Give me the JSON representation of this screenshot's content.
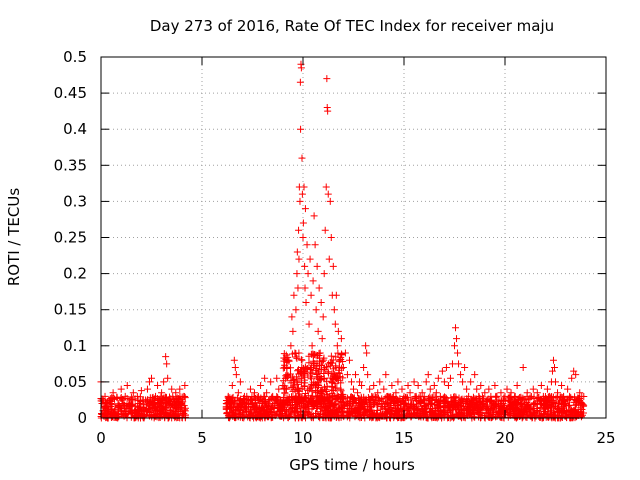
{
  "chart_data": {
    "type": "scatter",
    "title": "Day 273 of 2016, Rate Of TEC Index for receiver maju",
    "xlabel": "GPS time / hours",
    "ylabel": "ROTI / TECUs",
    "xlim": [
      0,
      25
    ],
    "ylim": [
      0,
      0.5
    ],
    "xticks": [
      0,
      5,
      10,
      15,
      20,
      25
    ],
    "xtick_labels": [
      "0",
      "5",
      "10",
      "15",
      "20",
      "25"
    ],
    "yticks": [
      0,
      0.05,
      0.1,
      0.15,
      0.2,
      0.25,
      0.3,
      0.35,
      0.4,
      0.45,
      0.5
    ],
    "ytick_labels": [
      "0",
      "0.05",
      "0.1",
      "0.15",
      "0.2",
      "0.25",
      "0.3",
      "0.35",
      "0.4",
      "0.45",
      "0.5"
    ],
    "grid": true,
    "marker": "+",
    "color": "#ff0000",
    "series": [
      {
        "name": "ROTI",
        "points": [
          [
            0.0,
            0.05
          ],
          [
            0.05,
            0.02
          ],
          [
            0.1,
            0.01
          ],
          [
            0.2,
            0.03
          ],
          [
            0.3,
            0.015
          ],
          [
            0.4,
            0.025
          ],
          [
            0.5,
            0.02
          ],
          [
            0.6,
            0.035
          ],
          [
            0.7,
            0.012
          ],
          [
            0.8,
            0.028
          ],
          [
            0.9,
            0.018
          ],
          [
            1.0,
            0.04
          ],
          [
            1.1,
            0.02
          ],
          [
            1.2,
            0.03
          ],
          [
            1.3,
            0.045
          ],
          [
            1.4,
            0.015
          ],
          [
            1.5,
            0.025
          ],
          [
            1.6,
            0.035
          ],
          [
            1.7,
            0.01
          ],
          [
            1.8,
            0.03
          ],
          [
            1.9,
            0.02
          ],
          [
            2.0,
            0.038
          ],
          [
            2.1,
            0.015
          ],
          [
            2.2,
            0.025
          ],
          [
            2.3,
            0.04
          ],
          [
            2.4,
            0.05
          ],
          [
            2.5,
            0.055
          ],
          [
            2.6,
            0.02
          ],
          [
            2.7,
            0.03
          ],
          [
            2.8,
            0.045
          ],
          [
            2.9,
            0.015
          ],
          [
            3.0,
            0.035
          ],
          [
            3.1,
            0.05
          ],
          [
            3.2,
            0.085
          ],
          [
            3.25,
            0.075
          ],
          [
            3.3,
            0.055
          ],
          [
            3.4,
            0.02
          ],
          [
            3.5,
            0.04
          ],
          [
            3.6,
            0.025
          ],
          [
            3.7,
            0.035
          ],
          [
            3.8,
            0.015
          ],
          [
            3.9,
            0.04
          ],
          [
            4.0,
            0.02
          ],
          [
            4.1,
            0.03
          ],
          [
            4.15,
            0.045
          ],
          [
            6.2,
            0.015
          ],
          [
            6.3,
            0.03
          ],
          [
            6.4,
            0.02
          ],
          [
            6.5,
            0.045
          ],
          [
            6.6,
            0.08
          ],
          [
            6.65,
            0.07
          ],
          [
            6.7,
            0.06
          ],
          [
            6.8,
            0.035
          ],
          [
            6.9,
            0.05
          ],
          [
            7.0,
            0.02
          ],
          [
            7.1,
            0.03
          ],
          [
            7.2,
            0.015
          ],
          [
            7.3,
            0.025
          ],
          [
            7.4,
            0.04
          ],
          [
            7.5,
            0.02
          ],
          [
            7.6,
            0.035
          ],
          [
            7.7,
            0.015
          ],
          [
            7.8,
            0.03
          ],
          [
            7.9,
            0.045
          ],
          [
            8.0,
            0.02
          ],
          [
            8.1,
            0.055
          ],
          [
            8.2,
            0.035
          ],
          [
            8.3,
            0.025
          ],
          [
            8.4,
            0.05
          ],
          [
            8.5,
            0.03
          ],
          [
            8.6,
            0.02
          ],
          [
            8.7,
            0.055
          ],
          [
            8.8,
            0.04
          ],
          [
            8.9,
            0.025
          ],
          [
            9.0,
            0.045
          ],
          [
            9.1,
            0.035
          ],
          [
            9.2,
            0.06
          ],
          [
            9.3,
            0.08
          ],
          [
            9.4,
            0.1
          ],
          [
            9.45,
            0.14
          ],
          [
            9.5,
            0.12
          ],
          [
            9.55,
            0.17
          ],
          [
            9.6,
            0.09
          ],
          [
            9.65,
            0.15
          ],
          [
            9.7,
            0.2
          ],
          [
            9.72,
            0.23
          ],
          [
            9.75,
            0.18
          ],
          [
            9.78,
            0.26
          ],
          [
            9.8,
            0.22
          ],
          [
            9.82,
            0.32
          ],
          [
            9.85,
            0.3
          ],
          [
            9.87,
            0.465
          ],
          [
            9.88,
            0.4
          ],
          [
            9.9,
            0.49
          ],
          [
            9.92,
            0.485
          ],
          [
            9.95,
            0.36
          ],
          [
            9.97,
            0.31
          ],
          [
            10.0,
            0.25
          ],
          [
            10.02,
            0.27
          ],
          [
            10.05,
            0.32
          ],
          [
            10.08,
            0.21
          ],
          [
            10.1,
            0.18
          ],
          [
            10.12,
            0.29
          ],
          [
            10.15,
            0.16
          ],
          [
            10.2,
            0.24
          ],
          [
            10.25,
            0.2
          ],
          [
            10.3,
            0.13
          ],
          [
            10.35,
            0.22
          ],
          [
            10.4,
            0.17
          ],
          [
            10.45,
            0.1
          ],
          [
            10.5,
            0.19
          ],
          [
            10.55,
            0.28
          ],
          [
            10.6,
            0.24
          ],
          [
            10.65,
            0.15
          ],
          [
            10.7,
            0.21
          ],
          [
            10.75,
            0.12
          ],
          [
            10.8,
            0.18
          ],
          [
            10.85,
            0.09
          ],
          [
            10.9,
            0.16
          ],
          [
            10.95,
            0.11
          ],
          [
            11.0,
            0.14
          ],
          [
            11.05,
            0.2
          ],
          [
            11.1,
            0.26
          ],
          [
            11.15,
            0.32
          ],
          [
            11.18,
            0.47
          ],
          [
            11.2,
            0.43
          ],
          [
            11.22,
            0.425
          ],
          [
            11.25,
            0.31
          ],
          [
            11.3,
            0.22
          ],
          [
            11.35,
            0.3
          ],
          [
            11.4,
            0.25
          ],
          [
            11.45,
            0.17
          ],
          [
            11.5,
            0.21
          ],
          [
            11.55,
            0.15
          ],
          [
            11.6,
            0.13
          ],
          [
            11.65,
            0.17
          ],
          [
            11.7,
            0.1
          ],
          [
            11.75,
            0.12
          ],
          [
            11.8,
            0.08
          ],
          [
            11.9,
            0.11
          ],
          [
            12.0,
            0.07
          ],
          [
            12.1,
            0.09
          ],
          [
            12.2,
            0.06
          ],
          [
            12.3,
            0.08
          ],
          [
            12.4,
            0.05
          ],
          [
            12.5,
            0.04
          ],
          [
            12.6,
            0.06
          ],
          [
            12.7,
            0.035
          ],
          [
            12.8,
            0.05
          ],
          [
            12.9,
            0.045
          ],
          [
            13.0,
            0.07
          ],
          [
            13.1,
            0.1
          ],
          [
            13.15,
            0.09
          ],
          [
            13.2,
            0.06
          ],
          [
            13.3,
            0.04
          ],
          [
            13.4,
            0.03
          ],
          [
            13.5,
            0.045
          ],
          [
            13.6,
            0.025
          ],
          [
            13.7,
            0.035
          ],
          [
            13.8,
            0.05
          ],
          [
            13.9,
            0.02
          ],
          [
            14.0,
            0.04
          ],
          [
            14.1,
            0.06
          ],
          [
            14.2,
            0.03
          ],
          [
            14.3,
            0.025
          ],
          [
            14.4,
            0.045
          ],
          [
            14.5,
            0.02
          ],
          [
            14.6,
            0.035
          ],
          [
            14.7,
            0.05
          ],
          [
            14.8,
            0.025
          ],
          [
            14.9,
            0.04
          ],
          [
            15.0,
            0.03
          ],
          [
            15.1,
            0.02
          ],
          [
            15.2,
            0.045
          ],
          [
            15.3,
            0.035
          ],
          [
            15.4,
            0.025
          ],
          [
            15.5,
            0.05
          ],
          [
            15.6,
            0.03
          ],
          [
            15.7,
            0.045
          ],
          [
            15.8,
            0.02
          ],
          [
            15.9,
            0.035
          ],
          [
            16.0,
            0.03
          ],
          [
            16.1,
            0.05
          ],
          [
            16.2,
            0.06
          ],
          [
            16.3,
            0.04
          ],
          [
            16.4,
            0.025
          ],
          [
            16.5,
            0.045
          ],
          [
            16.6,
            0.035
          ],
          [
            16.7,
            0.055
          ],
          [
            16.8,
            0.03
          ],
          [
            16.9,
            0.065
          ],
          [
            17.0,
            0.05
          ],
          [
            17.1,
            0.07
          ],
          [
            17.2,
            0.045
          ],
          [
            17.3,
            0.055
          ],
          [
            17.4,
            0.075
          ],
          [
            17.5,
            0.1
          ],
          [
            17.55,
            0.125
          ],
          [
            17.6,
            0.11
          ],
          [
            17.65,
            0.09
          ],
          [
            17.7,
            0.075
          ],
          [
            17.8,
            0.06
          ],
          [
            17.9,
            0.05
          ],
          [
            18.0,
            0.07
          ],
          [
            18.1,
            0.04
          ],
          [
            18.2,
            0.03
          ],
          [
            18.3,
            0.05
          ],
          [
            18.4,
            0.025
          ],
          [
            18.5,
            0.06
          ],
          [
            18.6,
            0.04
          ],
          [
            18.7,
            0.03
          ],
          [
            18.8,
            0.045
          ],
          [
            18.9,
            0.02
          ],
          [
            19.0,
            0.035
          ],
          [
            19.1,
            0.025
          ],
          [
            19.2,
            0.04
          ],
          [
            19.3,
            0.03
          ],
          [
            19.4,
            0.02
          ],
          [
            19.5,
            0.045
          ],
          [
            19.6,
            0.03
          ],
          [
            19.7,
            0.025
          ],
          [
            19.8,
            0.035
          ],
          [
            19.9,
            0.02
          ],
          [
            20.0,
            0.03
          ],
          [
            20.1,
            0.04
          ],
          [
            20.2,
            0.025
          ],
          [
            20.3,
            0.035
          ],
          [
            20.4,
            0.02
          ],
          [
            20.5,
            0.03
          ],
          [
            20.6,
            0.045
          ],
          [
            20.8,
            0.02
          ],
          [
            20.9,
            0.07
          ],
          [
            21.0,
            0.025
          ],
          [
            21.1,
            0.035
          ],
          [
            21.2,
            0.015
          ],
          [
            21.3,
            0.03
          ],
          [
            21.4,
            0.04
          ],
          [
            21.5,
            0.02
          ],
          [
            21.6,
            0.035
          ],
          [
            21.7,
            0.025
          ],
          [
            21.8,
            0.045
          ],
          [
            21.9,
            0.03
          ],
          [
            22.0,
            0.02
          ],
          [
            22.1,
            0.04
          ],
          [
            22.2,
            0.03
          ],
          [
            22.3,
            0.05
          ],
          [
            22.35,
            0.065
          ],
          [
            22.4,
            0.08
          ],
          [
            22.45,
            0.07
          ],
          [
            22.5,
            0.05
          ],
          [
            22.6,
            0.035
          ],
          [
            22.7,
            0.025
          ],
          [
            22.8,
            0.045
          ],
          [
            22.9,
            0.03
          ],
          [
            23.0,
            0.02
          ],
          [
            23.1,
            0.04
          ],
          [
            23.2,
            0.03
          ],
          [
            23.3,
            0.055
          ],
          [
            23.4,
            0.065
          ],
          [
            23.5,
            0.06
          ],
          [
            23.6,
            0.025
          ],
          [
            23.7,
            0.035
          ],
          [
            23.8,
            0.03
          ]
        ],
        "segments": [
          {
            "start": 0.0,
            "end": 4.2,
            "band": [
              0.0,
              0.03
            ]
          },
          {
            "start": 6.2,
            "end": 23.9,
            "band": [
              0.0,
              0.03
            ]
          },
          {
            "start": 9.0,
            "end": 12.0,
            "band": [
              0.02,
              0.09
            ]
          }
        ]
      }
    ]
  }
}
